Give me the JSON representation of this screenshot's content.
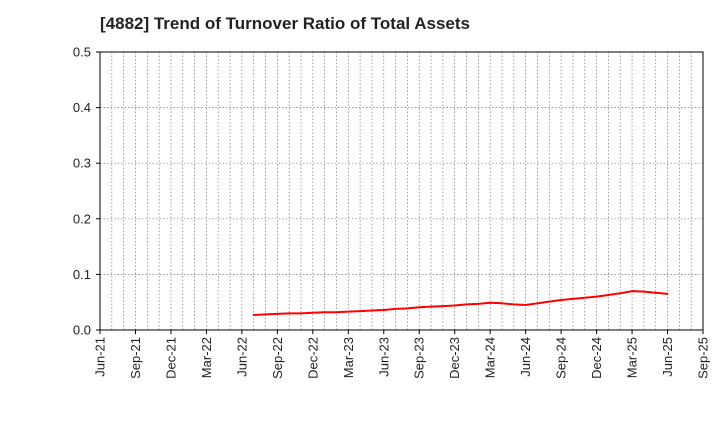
{
  "chart_data": {
    "type": "line",
    "title": "[4882]  Trend of Turnover Ratio of Total Assets",
    "xlabel": "",
    "ylabel": "",
    "x_tick_labels": [
      "Jun-21",
      "Sep-21",
      "Dec-21",
      "Mar-22",
      "Jun-22",
      "Sep-22",
      "Dec-22",
      "Mar-23",
      "Jun-23",
      "Sep-23",
      "Dec-23",
      "Mar-24",
      "Jun-24",
      "Sep-24",
      "Dec-24",
      "Mar-25",
      "Jun-25",
      "Sep-25"
    ],
    "y_tick_labels": [
      "0.0",
      "0.1",
      "0.2",
      "0.3",
      "0.4",
      "0.5"
    ],
    "ylim": [
      0,
      0.5
    ],
    "xlim": [
      "Jun-21",
      "Sep-25"
    ],
    "grid": true,
    "series": [
      {
        "color": "#ff0000",
        "x": [
          "Jul-22",
          "Aug-22",
          "Sep-22",
          "Oct-22",
          "Nov-22",
          "Dec-22",
          "Jan-23",
          "Feb-23",
          "Mar-23",
          "Apr-23",
          "May-23",
          "Jun-23",
          "Jul-23",
          "Aug-23",
          "Sep-23",
          "Oct-23",
          "Nov-23",
          "Dec-23",
          "Jan-24",
          "Feb-24",
          "Mar-24",
          "Apr-24",
          "May-24",
          "Jun-24",
          "Jul-24",
          "Aug-24",
          "Sep-24",
          "Oct-24",
          "Nov-24",
          "Dec-24",
          "Jan-25",
          "Feb-25",
          "Mar-25",
          "Apr-25",
          "May-25",
          "Jun-25"
        ],
        "values": [
          0.027,
          0.028,
          0.029,
          0.03,
          0.03,
          0.031,
          0.032,
          0.032,
          0.033,
          0.034,
          0.035,
          0.036,
          0.038,
          0.039,
          0.041,
          0.042,
          0.043,
          0.044,
          0.046,
          0.047,
          0.049,
          0.048,
          0.046,
          0.045,
          0.048,
          0.051,
          0.054,
          0.056,
          0.058,
          0.06,
          0.063,
          0.066,
          0.07,
          0.069,
          0.067,
          0.065
        ]
      }
    ]
  }
}
